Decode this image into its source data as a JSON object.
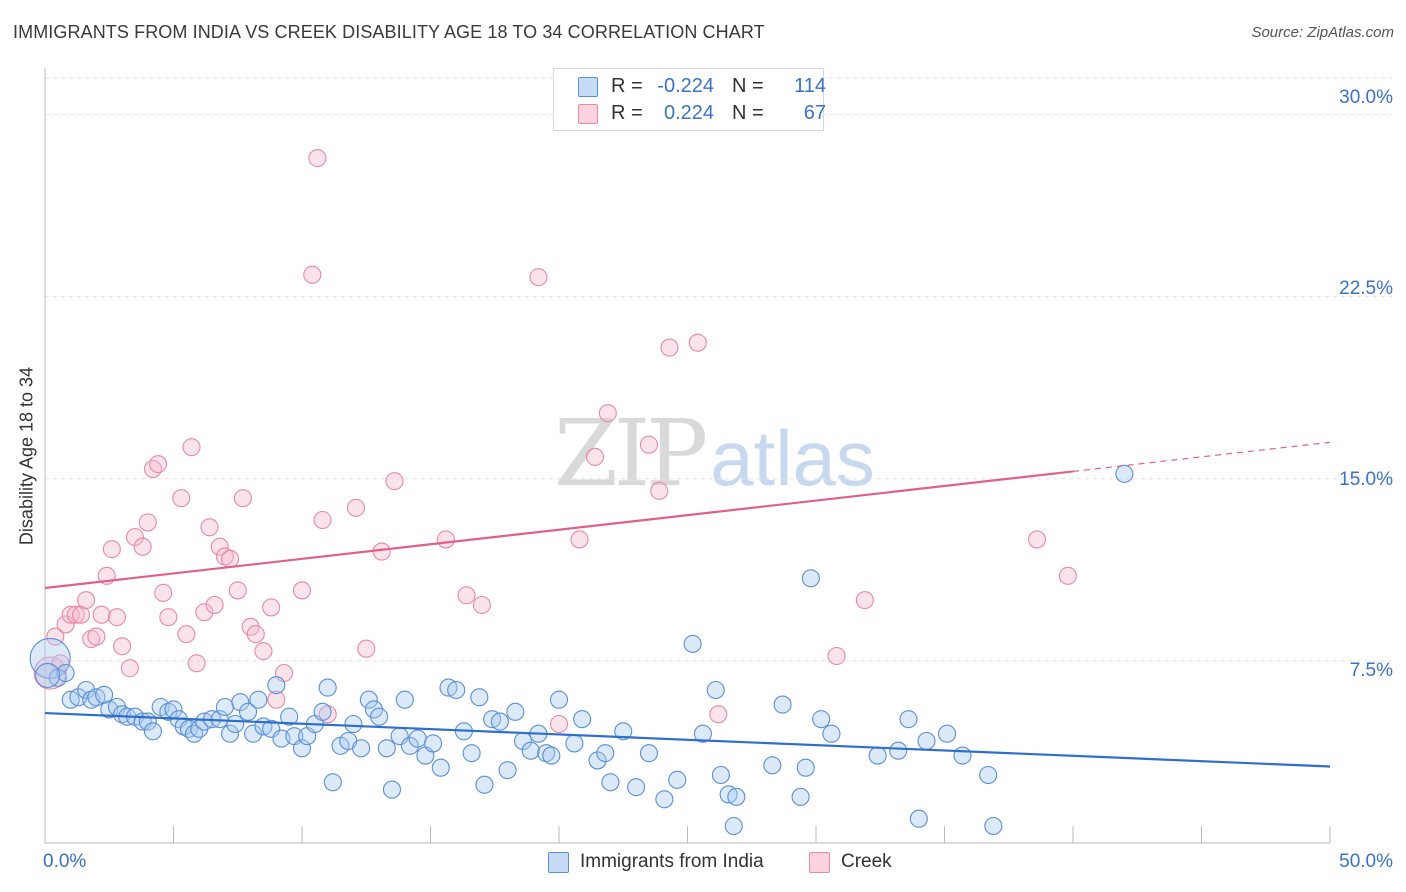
{
  "title": "IMMIGRANTS FROM INDIA VS CREEK DISABILITY AGE 18 TO 34 CORRELATION CHART",
  "source": "Source: ZipAtlas.com",
  "watermark": {
    "zip": "ZIP",
    "atlas": "atlas"
  },
  "colors": {
    "india_fill": "#a8c8f0",
    "india_stroke": "#5b8fd6",
    "india_line": "#2f6fcc",
    "creek_fill": "#f6b8cb",
    "creek_stroke": "#e689a8",
    "creek_line": "#e0608b",
    "grid": "#e2e2e2",
    "tick_text": "#3a72c8"
  },
  "legend": {
    "rows": [
      {
        "r_label": "R =",
        "r_value": "-0.224",
        "n_label": "N =",
        "n_value": "114"
      },
      {
        "r_label": "R =",
        "r_value": "0.224",
        "n_label": "N =",
        "n_value": "67"
      }
    ]
  },
  "chart_data": {
    "type": "scatter",
    "title": "IMMIGRANTS FROM INDIA VS CREEK DISABILITY AGE 18 TO 34 CORRELATION CHART",
    "xlabel": "",
    "ylabel": "Disability Age 18 to 34",
    "xlim": [
      0,
      50
    ],
    "ylim": [
      0,
      31.5
    ],
    "x_tick_labels": [
      "0.0%",
      "50.0%"
    ],
    "y_ticks": [
      7.5,
      15.0,
      22.5,
      30.0
    ],
    "y_tick_labels": [
      "7.5%",
      "15.0%",
      "22.5%",
      "30.0%"
    ],
    "series": [
      {
        "name": "Immigrants from India",
        "R": -0.224,
        "N": 114,
        "trend": {
          "x0": 0,
          "y0": 5.35,
          "x1": 50,
          "y1": 3.15
        },
        "points": [
          [
            0.2,
            7.6
          ],
          [
            0.5,
            6.8
          ],
          [
            0.8,
            7.0
          ],
          [
            1.0,
            5.9
          ],
          [
            1.3,
            6.0
          ],
          [
            1.6,
            6.3
          ],
          [
            1.8,
            5.9
          ],
          [
            2.0,
            6.0
          ],
          [
            2.3,
            6.1
          ],
          [
            2.5,
            5.5
          ],
          [
            2.8,
            5.6
          ],
          [
            3.0,
            5.3
          ],
          [
            3.2,
            5.2
          ],
          [
            3.5,
            5.2
          ],
          [
            3.8,
            5.0
          ],
          [
            4.0,
            5.0
          ],
          [
            4.2,
            4.6
          ],
          [
            4.5,
            5.6
          ],
          [
            4.8,
            5.4
          ],
          [
            5.0,
            5.5
          ],
          [
            5.2,
            5.1
          ],
          [
            5.4,
            4.8
          ],
          [
            5.6,
            4.7
          ],
          [
            5.8,
            4.5
          ],
          [
            6.0,
            4.7
          ],
          [
            6.2,
            5.0
          ],
          [
            6.5,
            5.1
          ],
          [
            6.8,
            5.1
          ],
          [
            7.0,
            5.6
          ],
          [
            7.2,
            4.5
          ],
          [
            7.4,
            4.9
          ],
          [
            7.6,
            5.8
          ],
          [
            7.9,
            5.4
          ],
          [
            8.1,
            4.5
          ],
          [
            8.3,
            5.9
          ],
          [
            8.5,
            4.8
          ],
          [
            8.8,
            4.7
          ],
          [
            9.0,
            6.5
          ],
          [
            9.2,
            4.3
          ],
          [
            9.5,
            5.2
          ],
          [
            9.7,
            4.4
          ],
          [
            10.0,
            3.9
          ],
          [
            10.2,
            4.4
          ],
          [
            10.5,
            4.9
          ],
          [
            10.8,
            5.4
          ],
          [
            11.0,
            6.4
          ],
          [
            11.2,
            2.5
          ],
          [
            11.5,
            4.0
          ],
          [
            11.8,
            4.2
          ],
          [
            12.0,
            4.9
          ],
          [
            12.3,
            3.9
          ],
          [
            12.6,
            5.9
          ],
          [
            12.8,
            5.5
          ],
          [
            13.0,
            5.2
          ],
          [
            13.3,
            3.9
          ],
          [
            13.5,
            2.2
          ],
          [
            13.8,
            4.4
          ],
          [
            14.0,
            5.9
          ],
          [
            14.2,
            4.0
          ],
          [
            14.5,
            4.3
          ],
          [
            14.8,
            3.6
          ],
          [
            15.1,
            4.1
          ],
          [
            15.4,
            3.1
          ],
          [
            15.7,
            6.4
          ],
          [
            16.0,
            6.3
          ],
          [
            16.3,
            4.6
          ],
          [
            16.6,
            3.7
          ],
          [
            16.9,
            6.0
          ],
          [
            17.1,
            2.4
          ],
          [
            17.4,
            5.1
          ],
          [
            17.7,
            5.0
          ],
          [
            18.0,
            3.0
          ],
          [
            18.3,
            5.4
          ],
          [
            18.6,
            4.2
          ],
          [
            18.9,
            3.8
          ],
          [
            19.2,
            4.5
          ],
          [
            19.5,
            3.7
          ],
          [
            19.7,
            3.6
          ],
          [
            20.0,
            5.9
          ],
          [
            20.6,
            4.1
          ],
          [
            20.9,
            5.1
          ],
          [
            21.5,
            3.4
          ],
          [
            21.8,
            3.7
          ],
          [
            22.0,
            2.5
          ],
          [
            22.5,
            4.6
          ],
          [
            23.0,
            2.3
          ],
          [
            23.5,
            3.7
          ],
          [
            24.1,
            1.8
          ],
          [
            24.6,
            2.6
          ],
          [
            25.2,
            8.2
          ],
          [
            25.6,
            4.5
          ],
          [
            26.1,
            6.3
          ],
          [
            26.3,
            2.8
          ],
          [
            26.6,
            2.0
          ],
          [
            26.8,
            0.7
          ],
          [
            26.9,
            1.9
          ],
          [
            28.3,
            3.2
          ],
          [
            28.7,
            5.7
          ],
          [
            29.4,
            1.9
          ],
          [
            29.6,
            3.1
          ],
          [
            29.8,
            10.9
          ],
          [
            30.6,
            4.5
          ],
          [
            30.2,
            5.1
          ],
          [
            32.4,
            3.6
          ],
          [
            33.2,
            3.8
          ],
          [
            33.6,
            5.1
          ],
          [
            34.3,
            4.2
          ],
          [
            35.1,
            4.5
          ],
          [
            35.7,
            3.6
          ],
          [
            36.7,
            2.8
          ],
          [
            36.9,
            0.7
          ],
          [
            42.0,
            15.2
          ],
          [
            34.0,
            1.0
          ],
          [
            0.1,
            6.9
          ]
        ]
      },
      {
        "name": "Creek",
        "R": 0.224,
        "N": 67,
        "trend": {
          "x0": 0,
          "y0": 10.5,
          "x1": 40,
          "y1": 15.3
        },
        "trend_dashed": {
          "x0": 40,
          "y0": 15.3,
          "x1": 50,
          "y1": 16.5
        },
        "points": [
          [
            0.2,
            7.0
          ],
          [
            0.4,
            8.5
          ],
          [
            0.6,
            7.4
          ],
          [
            0.8,
            9.0
          ],
          [
            1.0,
            9.4
          ],
          [
            1.2,
            9.4
          ],
          [
            1.4,
            9.4
          ],
          [
            1.6,
            10.0
          ],
          [
            1.8,
            8.4
          ],
          [
            2.0,
            8.5
          ],
          [
            2.2,
            9.4
          ],
          [
            2.4,
            11.0
          ],
          [
            2.6,
            12.1
          ],
          [
            2.8,
            9.3
          ],
          [
            3.0,
            8.1
          ],
          [
            3.3,
            7.2
          ],
          [
            3.5,
            12.6
          ],
          [
            3.8,
            12.2
          ],
          [
            4.0,
            13.2
          ],
          [
            4.2,
            15.4
          ],
          [
            4.4,
            15.6
          ],
          [
            4.6,
            10.3
          ],
          [
            4.8,
            9.3
          ],
          [
            5.3,
            14.2
          ],
          [
            5.5,
            8.6
          ],
          [
            5.7,
            16.3
          ],
          [
            5.9,
            7.4
          ],
          [
            6.2,
            9.5
          ],
          [
            6.4,
            13.0
          ],
          [
            6.6,
            9.8
          ],
          [
            6.8,
            12.2
          ],
          [
            7.0,
            11.8
          ],
          [
            7.2,
            11.7
          ],
          [
            7.5,
            10.4
          ],
          [
            7.7,
            14.2
          ],
          [
            8.0,
            8.9
          ],
          [
            8.2,
            8.6
          ],
          [
            8.5,
            7.9
          ],
          [
            8.8,
            9.7
          ],
          [
            9.0,
            5.9
          ],
          [
            9.3,
            7.0
          ],
          [
            10.0,
            10.4
          ],
          [
            10.4,
            23.4
          ],
          [
            10.6,
            28.2
          ],
          [
            10.8,
            13.3
          ],
          [
            11.0,
            5.3
          ],
          [
            12.1,
            13.8
          ],
          [
            12.5,
            8.0
          ],
          [
            13.1,
            12.0
          ],
          [
            13.6,
            14.9
          ],
          [
            15.6,
            12.5
          ],
          [
            16.4,
            10.2
          ],
          [
            17.0,
            9.8
          ],
          [
            19.2,
            23.3
          ],
          [
            20.0,
            4.9
          ],
          [
            20.8,
            12.5
          ],
          [
            21.4,
            15.9
          ],
          [
            21.9,
            17.7
          ],
          [
            23.5,
            16.4
          ],
          [
            23.9,
            14.5
          ],
          [
            24.3,
            20.4
          ],
          [
            25.4,
            20.6
          ],
          [
            26.2,
            5.3
          ],
          [
            30.8,
            7.7
          ],
          [
            31.9,
            10.0
          ],
          [
            38.6,
            12.5
          ],
          [
            39.8,
            11.0
          ]
        ]
      }
    ]
  },
  "bottom_legend": {
    "india_label": "Immigrants from India",
    "creek_label": "Creek"
  },
  "axes": {
    "x_min_label": "0.0%",
    "x_max_label": "50.0%",
    "y_tick_labels": [
      "7.5%",
      "15.0%",
      "22.5%",
      "30.0%"
    ]
  }
}
